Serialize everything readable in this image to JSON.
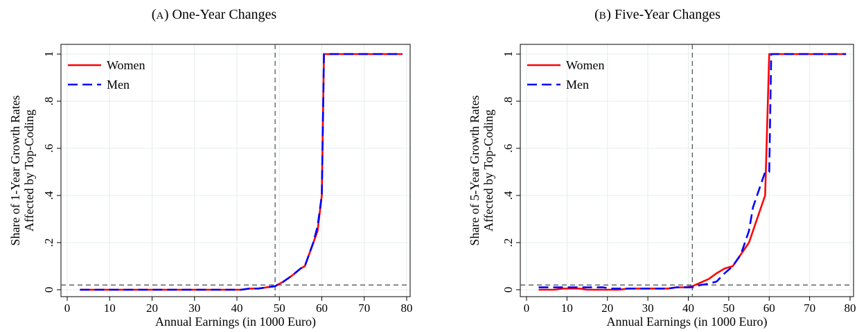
{
  "chart_data": [
    {
      "type": "line",
      "panel_letter": "A",
      "title": "One-Year Changes",
      "xlabel": "Annual Earnings (in 1000 Euro)",
      "ylabel_lines": [
        "Share of 1-Year Growth Rates",
        "Affected by Top-Coding"
      ],
      "xlim": [
        0,
        80
      ],
      "ylim": [
        0,
        1
      ],
      "x_ticks": [
        "0",
        "10",
        "20",
        "30",
        "40",
        "50",
        "60",
        "70",
        "80"
      ],
      "y_ticks": [
        "0",
        ".2",
        ".4",
        ".6",
        ".8",
        "1"
      ],
      "grid": true,
      "legend_position": "top-left",
      "reference_lines": {
        "vertical_x": 49,
        "horizontal_y": 0.02
      },
      "series": [
        {
          "name": "Women",
          "color": "#ff0000",
          "style": "solid",
          "x": [
            3,
            5,
            7,
            9,
            11,
            13,
            15,
            17,
            19,
            21,
            23,
            25,
            27,
            29,
            31,
            33,
            35,
            37,
            39,
            41,
            43,
            45,
            47,
            49,
            51,
            53,
            55,
            56,
            57,
            58,
            59,
            60,
            60.5,
            61,
            63,
            65,
            67,
            69,
            71,
            73,
            75,
            77,
            79
          ],
          "y": [
            0,
            0,
            0,
            0,
            0,
            0,
            0,
            0,
            0,
            0,
            0,
            0,
            0,
            0,
            0,
            0,
            0,
            0,
            0,
            0,
            0.005,
            0.005,
            0.01,
            0.015,
            0.035,
            0.06,
            0.09,
            0.1,
            0.15,
            0.2,
            0.25,
            0.4,
            1,
            1,
            1,
            1,
            1,
            1,
            1,
            1,
            1,
            1,
            1
          ]
        },
        {
          "name": "Men",
          "color": "#0000ff",
          "style": "dashed",
          "x": [
            3,
            5,
            7,
            9,
            11,
            13,
            15,
            17,
            19,
            21,
            23,
            25,
            27,
            29,
            31,
            33,
            35,
            37,
            39,
            41,
            43,
            45,
            47,
            49,
            51,
            53,
            55,
            56,
            57,
            58,
            59,
            60,
            60.5,
            61,
            63,
            65,
            67,
            69,
            71,
            73,
            75,
            77,
            79
          ],
          "y": [
            0,
            0,
            0,
            0,
            0,
            0,
            0,
            0,
            0,
            0,
            0,
            0,
            0,
            0,
            0,
            0,
            0,
            0,
            0,
            0,
            0.005,
            0.005,
            0.01,
            0.015,
            0.035,
            0.06,
            0.09,
            0.1,
            0.15,
            0.2,
            0.27,
            0.4,
            1,
            1,
            1,
            1,
            1,
            1,
            1,
            1,
            1,
            1,
            1
          ]
        }
      ]
    },
    {
      "type": "line",
      "panel_letter": "B",
      "title": "Five-Year Changes",
      "xlabel": "Annual Earnings (in 1000 Euro)",
      "ylabel_lines": [
        "Share of 5-Year Growth Rates",
        "Affected by Top-Coding"
      ],
      "xlim": [
        0,
        80
      ],
      "ylim": [
        0,
        1
      ],
      "x_ticks": [
        "0",
        "10",
        "20",
        "30",
        "40",
        "50",
        "60",
        "70",
        "80"
      ],
      "y_ticks": [
        "0",
        ".2",
        ".4",
        ".6",
        ".8",
        "1"
      ],
      "grid": true,
      "legend_position": "top-left",
      "reference_lines": {
        "vertical_x": 41,
        "horizontal_y": 0.02
      },
      "series": [
        {
          "name": "Women",
          "color": "#ff0000",
          "style": "solid",
          "x": [
            3,
            5,
            7,
            9,
            11,
            13,
            15,
            17,
            19,
            21,
            23,
            25,
            27,
            29,
            31,
            33,
            35,
            37,
            39,
            41,
            43,
            45,
            47,
            49,
            51,
            53,
            55,
            57,
            59,
            60,
            60.5,
            61,
            63,
            65,
            67,
            69,
            71,
            73,
            75,
            77,
            79
          ],
          "y": [
            0,
            0,
            0,
            0.005,
            0.005,
            0.005,
            0,
            0,
            0,
            0,
            0,
            0.005,
            0.005,
            0.005,
            0.005,
            0.005,
            0.005,
            0.01,
            0.01,
            0.015,
            0.03,
            0.045,
            0.07,
            0.09,
            0.1,
            0.15,
            0.2,
            0.3,
            0.4,
            1,
            1,
            1,
            1,
            1,
            1,
            1,
            1,
            1,
            1,
            1,
            1
          ]
        },
        {
          "name": "Men",
          "color": "#0000ff",
          "style": "dashed",
          "x": [
            3,
            5,
            7,
            9,
            11,
            13,
            15,
            17,
            19,
            21,
            23,
            25,
            27,
            29,
            31,
            33,
            35,
            37,
            39,
            41,
            43,
            45,
            47,
            49,
            51,
            53,
            55,
            56,
            57,
            58,
            59,
            60,
            60.5,
            61,
            63,
            65,
            67,
            69,
            71,
            73,
            75,
            77,
            79
          ],
          "y": [
            0.01,
            0.01,
            0.01,
            0.01,
            0.01,
            0.01,
            0.01,
            0.01,
            0.01,
            0.005,
            0.005,
            0.005,
            0.005,
            0.005,
            0.005,
            0.005,
            0.005,
            0.01,
            0.01,
            0.01,
            0.02,
            0.025,
            0.035,
            0.07,
            0.1,
            0.15,
            0.25,
            0.35,
            0.4,
            0.45,
            0.5,
            0.5,
            1,
            1,
            1,
            1,
            1,
            1,
            1,
            1,
            1,
            1,
            1
          ]
        }
      ]
    }
  ]
}
